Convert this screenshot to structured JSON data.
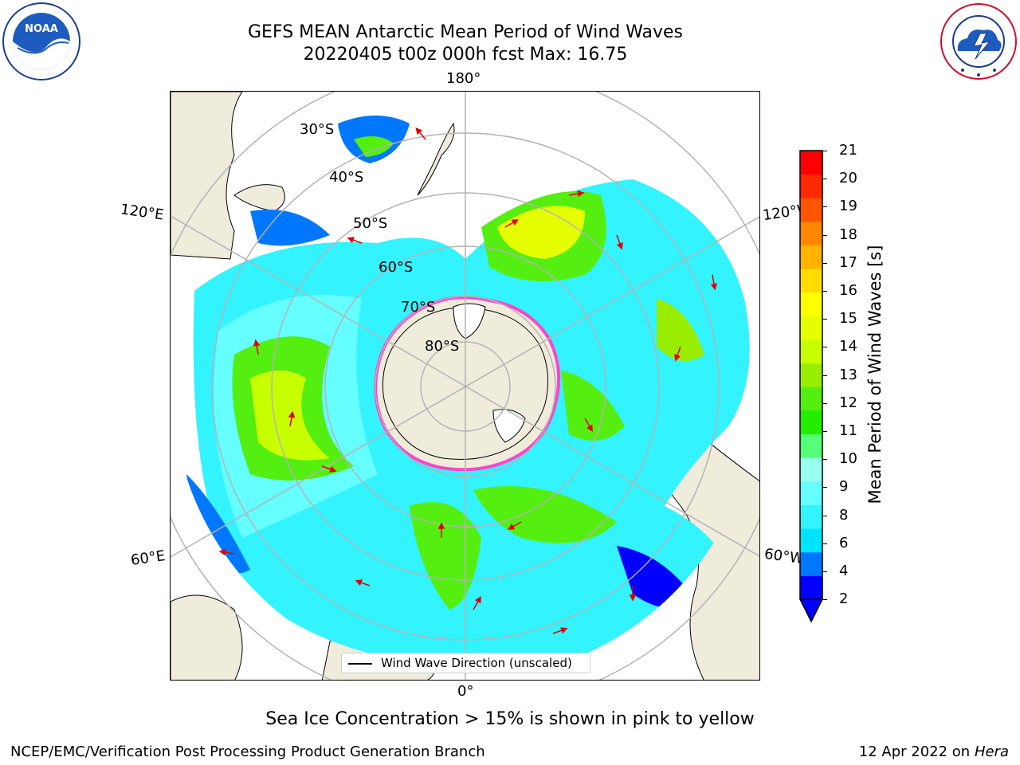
{
  "title": {
    "line1": "GEFS MEAN Antarctic Mean Period of Wind Waves",
    "line2": "20220405 t00z 000h fcst   Max: 16.75"
  },
  "logos": {
    "noaa": {
      "text": "NOAA",
      "icon": "noaa-logo"
    },
    "nws": {
      "icon": "nws-logo"
    }
  },
  "map": {
    "longitude_labels": {
      "top": "180°",
      "bottom": "0°",
      "upper_left": "120°E",
      "upper_right": "120°W",
      "lower_left": "60°E",
      "lower_right": "60°W"
    },
    "latitude_labels": [
      "30°S",
      "40°S",
      "50°S",
      "60°S",
      "70°S",
      "80°S"
    ],
    "legend": "Wind Wave Direction (unscaled)"
  },
  "colorbar": {
    "label": "Mean Period of Wind Waves [s]",
    "ticks": [
      "21",
      "20",
      "19",
      "18",
      "17",
      "16",
      "15",
      "14",
      "13",
      "12",
      "11",
      "10",
      "9",
      "8",
      "6",
      "4",
      "2"
    ],
    "colors": [
      "#0000ff",
      "#0077ff",
      "#00e5ff",
      "#33f3ff",
      "#66ffff",
      "#99ffee",
      "#55ff77",
      "#22ee00",
      "#55ee11",
      "#99ee00",
      "#c8ff00",
      "#e6ff00",
      "#ffff00",
      "#ffdd00",
      "#ffb300",
      "#ff8800",
      "#ff5500",
      "#ff2a00",
      "#ff0000"
    ],
    "extend": "min"
  },
  "note": "Sea Ice Concentration > 15% is shown in pink to yellow",
  "footer": {
    "left": "NCEP/EMC/Verification Post Processing Product Generation Branch",
    "date": "12 Apr 2022 on ",
    "machine": "Hera"
  }
}
